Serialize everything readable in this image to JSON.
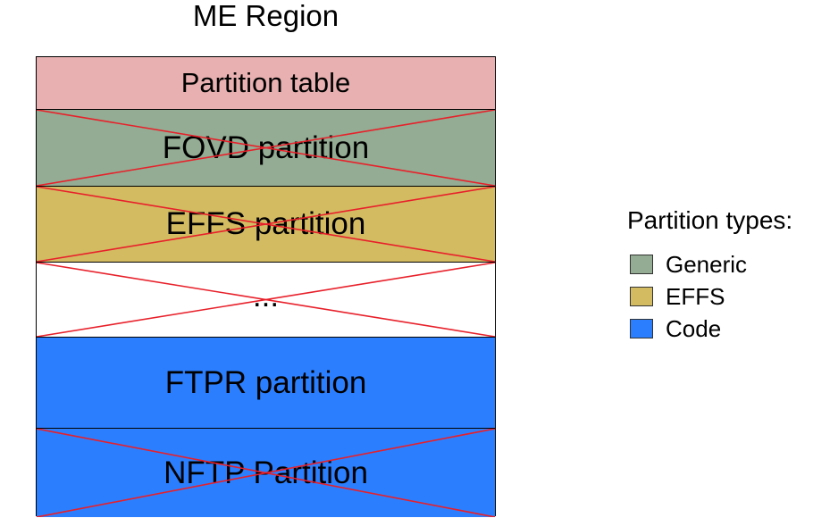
{
  "title": "ME Region",
  "partitions": [
    {
      "label": "Partition table",
      "type": "table",
      "color": "#e8b0b0",
      "crossed": false,
      "font_size": 31
    },
    {
      "label": "FOVD partition",
      "type": "Generic",
      "color": "#93ac93",
      "crossed": true,
      "font_size": 35
    },
    {
      "label": "EFFS partition",
      "type": "EFFS",
      "color": "#d3bb62",
      "crossed": true,
      "font_size": 35
    },
    {
      "label": "...",
      "type": "none",
      "color": "#ffffff",
      "crossed": true,
      "font_size": 35
    },
    {
      "label": "FTPR partition",
      "type": "Code",
      "color": "#2b7fff",
      "crossed": false,
      "font_size": 35
    },
    {
      "label": "NFTP Partition",
      "type": "Code",
      "color": "#2b7fff",
      "crossed": true,
      "font_size": 35
    }
  ],
  "legend": {
    "title": "Partition types:",
    "items": [
      {
        "label": "Generic",
        "color": "#93ac93"
      },
      {
        "label": "EFFS",
        "color": "#d3bb62"
      },
      {
        "label": "Code",
        "color": "#2b7fff"
      }
    ]
  },
  "cross_color": "#e8202a"
}
